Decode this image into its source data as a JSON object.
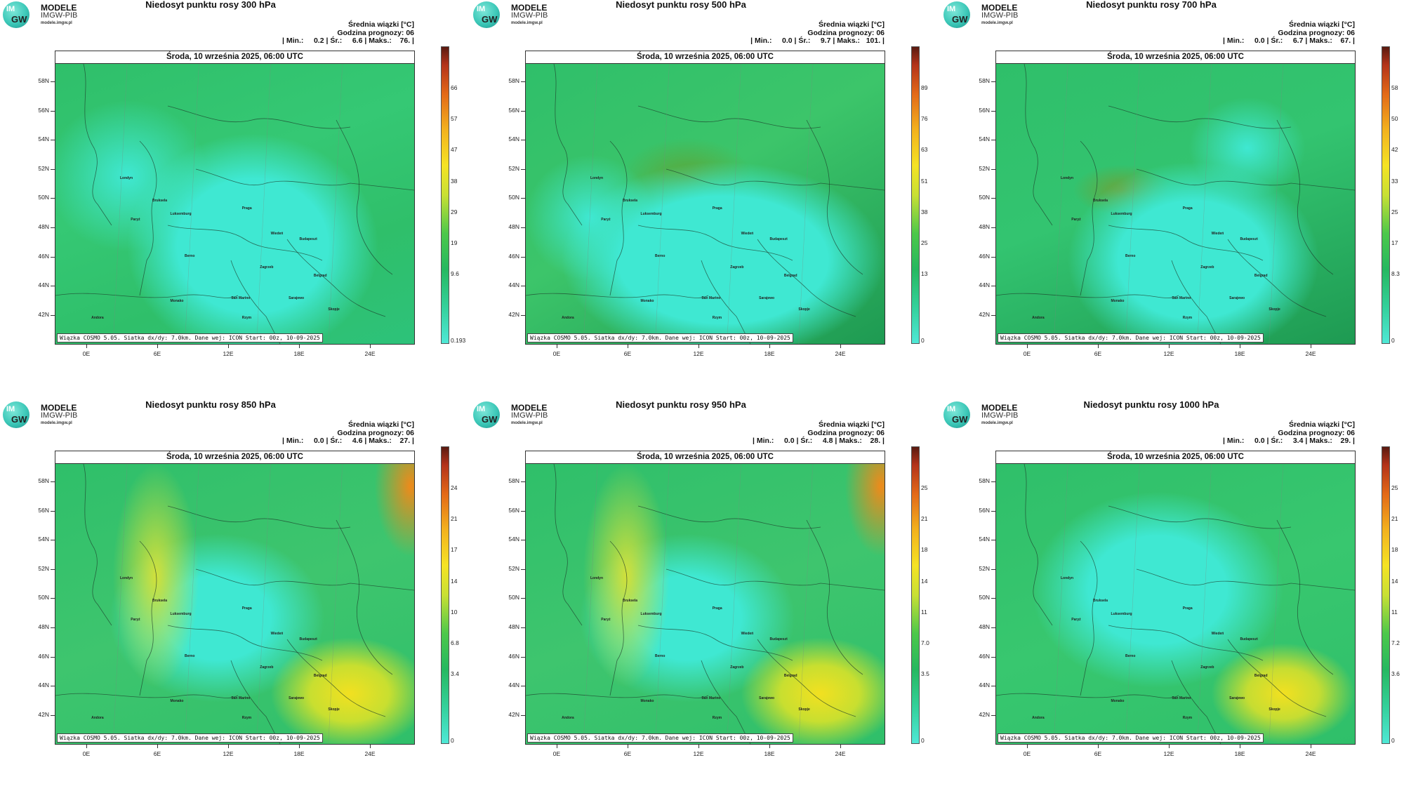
{
  "logo": {
    "circle_top": "IM",
    "circle_bottom": "GW",
    "line1": "MODELE",
    "line2": "IMGW-PIB",
    "line3": "modele.imgw.pl"
  },
  "map_header": "Środa, 10 września 2025, 06:00 UTC",
  "map_footer": "Wiązka COSMO 5.05. Siatka dx/dy: 7.0km. Dane wej: ICON Start: 00z, 10-09-2025",
  "info_line1": "Średnia wiązki [°C]",
  "info_line2": "Godzina prognozy: 06",
  "lat_labels": [
    "58N",
    "56N",
    "54N",
    "52N",
    "50N",
    "48N",
    "46N",
    "44N",
    "42N"
  ],
  "lon_labels": [
    "0E",
    "6E",
    "12E",
    "18E",
    "24E"
  ],
  "cities": [
    "Londyn",
    "Bruksela",
    "Luksemburg",
    "Paryż",
    "Praga",
    "Wiedeń",
    "Budapeszt",
    "Berno",
    "Zagrzeb",
    "Belgrad",
    "San Marino",
    "Sarajewo",
    "Skopje",
    "Monako",
    "Rzym",
    "Andora"
  ],
  "panels": [
    {
      "title": "Niedosyt punktu rosy 300 hPa",
      "stats": "| Min.:     0.2 | Śr.:     6.6 | Maks.:    76. |",
      "colorbar": [
        "66",
        "57",
        "47",
        "38",
        "29",
        "19",
        "9.6",
        "0.193"
      ],
      "style": "upper"
    },
    {
      "title": "Niedosyt punktu rosy 500 hPa",
      "stats": "| Min.:     0.0 | Śr.:     9.7 | Maks.:   101. |",
      "colorbar": [
        "89",
        "76",
        "63",
        "51",
        "38",
        "25",
        "13",
        "0"
      ],
      "style": "upper"
    },
    {
      "title": "Niedosyt punktu rosy 700 hPa",
      "stats": "| Min.:     0.0 | Śr.:     6.7 | Maks.:    67. |",
      "colorbar": [
        "58",
        "50",
        "42",
        "33",
        "25",
        "17",
        "8.3",
        "0"
      ],
      "style": "upper"
    },
    {
      "title": "Niedosyt punktu rosy 850 hPa",
      "stats": "| Min.:     0.0 | Śr.:     4.6 | Maks.:    27. |",
      "colorbar": [
        "24",
        "21",
        "17",
        "14",
        "10",
        "6.8",
        "3.4",
        "0"
      ],
      "style": "lower"
    },
    {
      "title": "Niedosyt punktu rosy 950 hPa",
      "stats": "| Min.:     0.0 | Śr.:     4.8 | Maks.:    28. |",
      "colorbar": [
        "25",
        "21",
        "18",
        "14",
        "11",
        "7.0",
        "3.5",
        "0"
      ],
      "style": "lower"
    },
    {
      "title": "Niedosyt punktu rosy 1000 hPa",
      "stats": "| Min.:     0.0 | Śr.:     3.4 | Maks.:    29. |",
      "colorbar": [
        "25",
        "21",
        "18",
        "14",
        "11",
        "7.2",
        "3.6",
        "0"
      ],
      "style": "lower2"
    }
  ],
  "colors": {
    "cyan": "#3fe8d2",
    "green": "#2fbf6a",
    "dark_green": "#1e9a52",
    "yellow": "#f2e020",
    "orange": "#ef8a1a",
    "red": "#c8341a"
  }
}
